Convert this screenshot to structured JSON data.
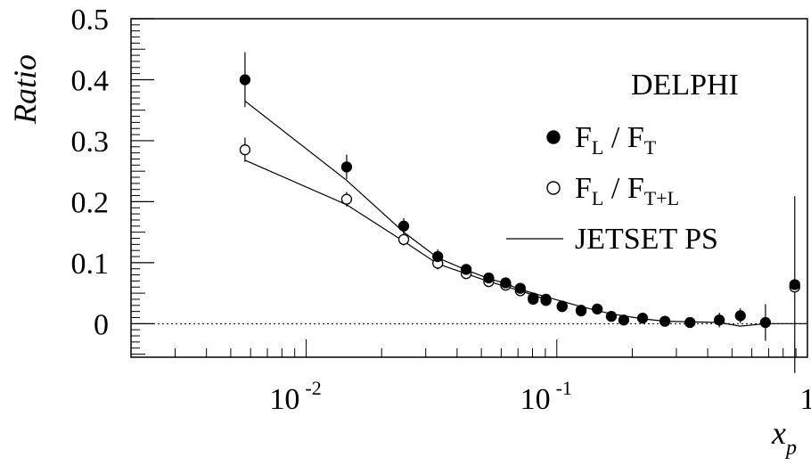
{
  "chart_data": {
    "type": "scatter",
    "title": "DELPHI",
    "xlabel": "x",
    "xlabel_sub": "p",
    "ylabel": "Ratio",
    "x_scale": "log",
    "xlim": [
      0.002,
      1
    ],
    "ylim": [
      -0.055,
      0.5
    ],
    "y_ticks": [
      "0",
      "0.1",
      "0.2",
      "0.3",
      "0.4",
      "0.5"
    ],
    "x_ticks": [
      {
        "base": "10",
        "exp": "-2"
      },
      {
        "base": "10",
        "exp": "-1"
      },
      {
        "base": "1",
        "exp": ""
      }
    ],
    "legend": {
      "placement": "right",
      "items": [
        {
          "marker": "filled-circle",
          "main": "F",
          "sub1": "L",
          "sep": " / F",
          "sub2": "T"
        },
        {
          "marker": "open-circle",
          "main": "F",
          "sub1": "L",
          "sep": " / F",
          "sub2": "T+L"
        },
        {
          "marker": "line",
          "text": "JETSET PS"
        }
      ]
    },
    "zero_line": "dotted",
    "series": [
      {
        "name": "F_L / F_T",
        "marker": "filled",
        "points": [
          {
            "x": 0.0057,
            "y": 0.4,
            "err": 0.045
          },
          {
            "x": 0.0145,
            "y": 0.257,
            "err": 0.02
          },
          {
            "x": 0.0245,
            "y": 0.16,
            "err": 0.013
          },
          {
            "x": 0.0335,
            "y": 0.11,
            "err": 0.012
          },
          {
            "x": 0.0435,
            "y": 0.089,
            "err": 0.008
          },
          {
            "x": 0.0535,
            "y": 0.075,
            "err": 0.008
          },
          {
            "x": 0.0625,
            "y": 0.067,
            "err": 0.007
          },
          {
            "x": 0.0715,
            "y": 0.058,
            "err": 0.007
          },
          {
            "x": 0.0805,
            "y": 0.042,
            "err": 0.006
          },
          {
            "x": 0.0905,
            "y": 0.04,
            "err": 0.006
          },
          {
            "x": 0.105,
            "y": 0.029,
            "err": 0.005
          },
          {
            "x": 0.125,
            "y": 0.022,
            "err": 0.005
          },
          {
            "x": 0.145,
            "y": 0.024,
            "err": 0.005
          },
          {
            "x": 0.165,
            "y": 0.012,
            "err": 0.005
          },
          {
            "x": 0.185,
            "y": 0.006,
            "err": 0.005
          },
          {
            "x": 0.22,
            "y": 0.009,
            "err": 0.005
          },
          {
            "x": 0.27,
            "y": 0.004,
            "err": 0.005
          },
          {
            "x": 0.34,
            "y": 0.002,
            "err": 0.005
          },
          {
            "x": 0.445,
            "y": 0.006,
            "err": 0.012
          },
          {
            "x": 0.54,
            "y": 0.013,
            "err": 0.012
          },
          {
            "x": 0.68,
            "y": 0.002,
            "err": 0.03
          },
          {
            "x": 0.89,
            "y": 0.064,
            "err": 0.145
          }
        ]
      },
      {
        "name": "F_L / F_T+L",
        "marker": "open",
        "points": [
          {
            "x": 0.0057,
            "y": 0.285,
            "err": 0.02
          },
          {
            "x": 0.0145,
            "y": 0.204,
            "err": 0.012
          },
          {
            "x": 0.0245,
            "y": 0.138,
            "err": 0.01
          },
          {
            "x": 0.0335,
            "y": 0.099,
            "err": 0.01
          },
          {
            "x": 0.0435,
            "y": 0.082,
            "err": 0.007
          },
          {
            "x": 0.0535,
            "y": 0.069,
            "err": 0.007
          },
          {
            "x": 0.0625,
            "y": 0.063,
            "err": 0.006
          },
          {
            "x": 0.0715,
            "y": 0.054,
            "err": 0.006
          },
          {
            "x": 0.0805,
            "y": 0.04,
            "err": 0.005
          },
          {
            "x": 0.0905,
            "y": 0.038,
            "err": 0.005
          },
          {
            "x": 0.105,
            "y": 0.028,
            "err": 0.005
          },
          {
            "x": 0.125,
            "y": 0.021,
            "err": 0.005
          },
          {
            "x": 0.89,
            "y": 0.06,
            "err": 0.01
          }
        ]
      },
      {
        "name": "JETSET PS (F_L / F_T)",
        "marker": "line",
        "points": [
          {
            "x": 0.0057,
            "y": 0.365
          },
          {
            "x": 0.0145,
            "y": 0.235
          },
          {
            "x": 0.0245,
            "y": 0.15
          },
          {
            "x": 0.0335,
            "y": 0.108
          },
          {
            "x": 0.0435,
            "y": 0.088
          },
          {
            "x": 0.0535,
            "y": 0.074
          },
          {
            "x": 0.0625,
            "y": 0.066
          },
          {
            "x": 0.0715,
            "y": 0.056
          },
          {
            "x": 0.0905,
            "y": 0.044
          },
          {
            "x": 0.125,
            "y": 0.028
          },
          {
            "x": 0.165,
            "y": 0.016
          },
          {
            "x": 0.22,
            "y": 0.008
          },
          {
            "x": 0.27,
            "y": 0.004
          },
          {
            "x": 0.445,
            "y": 0.002
          },
          {
            "x": 0.54,
            "y": -0.004
          },
          {
            "x": 0.68,
            "y": 0.0
          },
          {
            "x": 1.0,
            "y": 0.0
          }
        ]
      },
      {
        "name": "JETSET PS (F_L / F_T+L)",
        "marker": "line",
        "points": [
          {
            "x": 0.0057,
            "y": 0.268
          },
          {
            "x": 0.0145,
            "y": 0.195
          },
          {
            "x": 0.0245,
            "y": 0.135
          },
          {
            "x": 0.0335,
            "y": 0.098
          },
          {
            "x": 0.0435,
            "y": 0.082
          },
          {
            "x": 0.0535,
            "y": 0.069
          },
          {
            "x": 0.0715,
            "y": 0.054
          },
          {
            "x": 0.0905,
            "y": 0.04
          }
        ]
      }
    ]
  }
}
